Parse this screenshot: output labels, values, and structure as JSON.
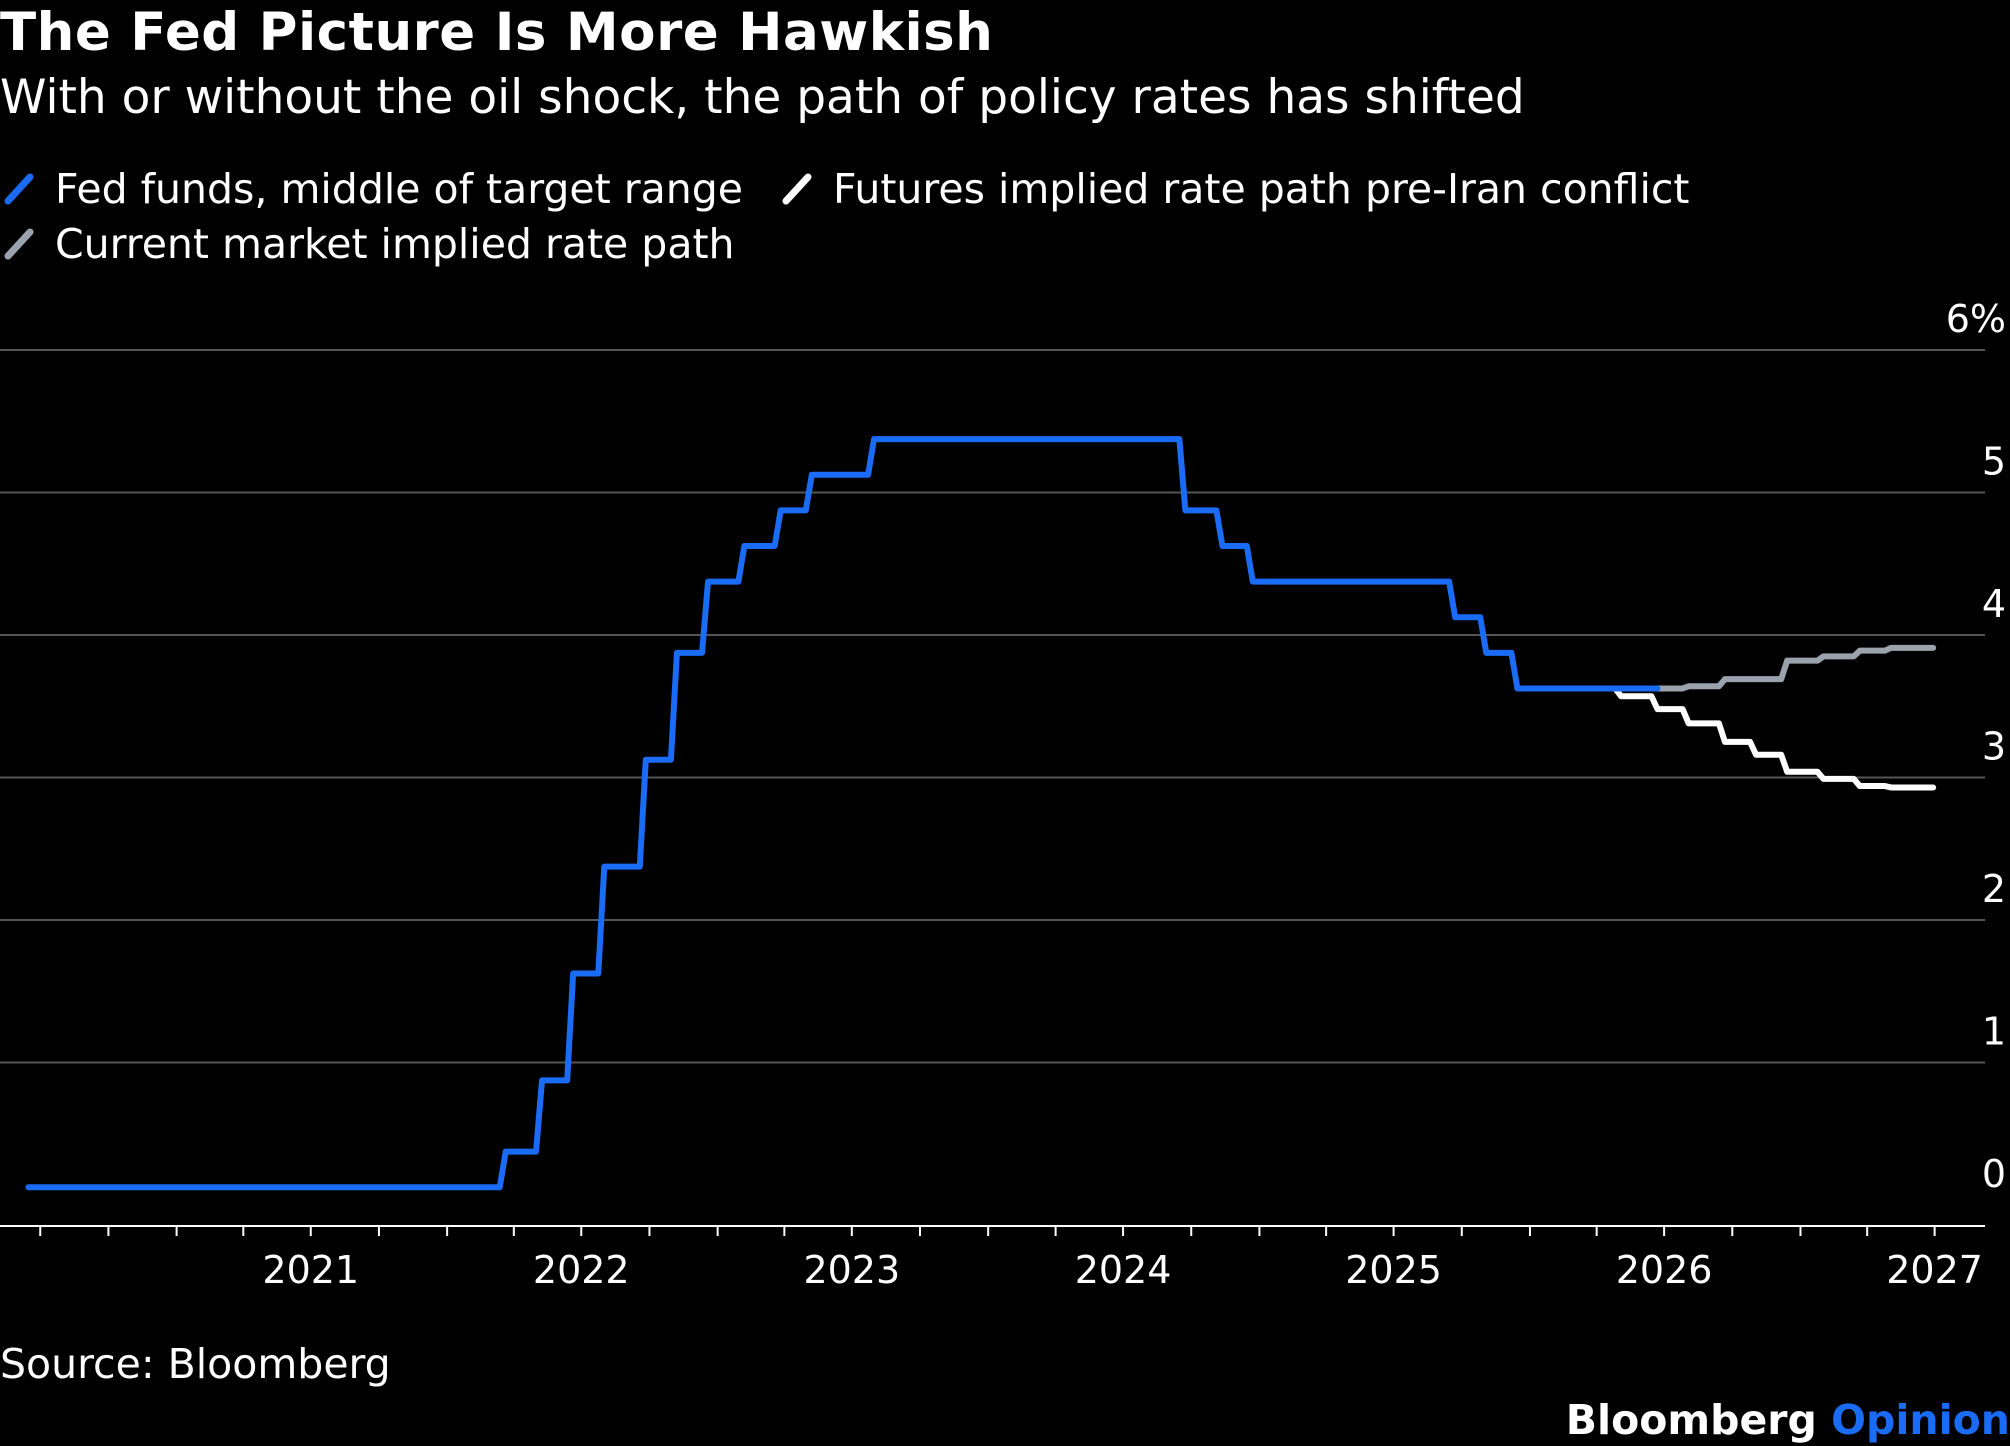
{
  "chart_data": {
    "type": "line",
    "title": "The Fed Picture Is More Hawkish",
    "subtitle": "With or without the oil shock, the path of policy rates has shifted",
    "ylim": [
      0,
      6
    ],
    "y_ticks": [
      "0",
      "1",
      "2",
      "3",
      "4",
      "5",
      "6%"
    ],
    "x_tick_labels": [
      "2021",
      "2022",
      "2023",
      "2024",
      "2025",
      "2026",
      "2027"
    ],
    "xlim": [
      "2020-06-01",
      "2027-07-15"
    ],
    "legend_placement": "top-left",
    "grid": "horizontal",
    "series": [
      {
        "name": "Fed funds, middle of target range",
        "color": "#1a6bf5",
        "step": true,
        "points": [
          [
            "2020-06-15",
            0.125
          ],
          [
            "2022-03-17",
            0.375
          ],
          [
            "2022-05-05",
            0.875
          ],
          [
            "2022-06-16",
            1.625
          ],
          [
            "2022-07-28",
            2.375
          ],
          [
            "2022-09-22",
            3.125
          ],
          [
            "2022-11-03",
            3.875
          ],
          [
            "2022-12-15",
            4.375
          ],
          [
            "2023-02-02",
            4.625
          ],
          [
            "2023-03-23",
            4.875
          ],
          [
            "2023-05-04",
            5.125
          ],
          [
            "2023-07-27",
            5.375
          ],
          [
            "2024-09-19",
            4.875
          ],
          [
            "2024-11-08",
            4.625
          ],
          [
            "2024-12-19",
            4.375
          ],
          [
            "2025-09-18",
            4.125
          ],
          [
            "2025-10-30",
            3.875
          ],
          [
            "2025-12-11",
            3.625
          ],
          [
            "2026-06-18",
            3.625
          ]
        ]
      },
      {
        "name": "Futures implied rate path pre-Iran conflict",
        "color": "#ffffff",
        "step": true,
        "points": [
          [
            "2026-03-01",
            3.625
          ],
          [
            "2026-04-30",
            3.57
          ],
          [
            "2026-06-18",
            3.48
          ],
          [
            "2026-07-30",
            3.38
          ],
          [
            "2026-09-17",
            3.25
          ],
          [
            "2026-10-29",
            3.16
          ],
          [
            "2026-12-10",
            3.04
          ],
          [
            "2027-01-28",
            2.99
          ],
          [
            "2027-03-18",
            2.94
          ],
          [
            "2027-04-29",
            2.93
          ],
          [
            "2027-06-25",
            2.93
          ]
        ]
      },
      {
        "name": "Current market implied rate path",
        "color": "#9aa3ad",
        "step": true,
        "points": [
          [
            "2026-06-18",
            3.625
          ],
          [
            "2026-07-30",
            3.64
          ],
          [
            "2026-09-17",
            3.69
          ],
          [
            "2026-12-10",
            3.82
          ],
          [
            "2027-01-28",
            3.85
          ],
          [
            "2027-03-18",
            3.89
          ],
          [
            "2027-04-29",
            3.91
          ],
          [
            "2027-06-25",
            3.91
          ]
        ]
      }
    ],
    "source": "Source: Bloomberg"
  },
  "legend": [
    "Fed funds, middle of target range",
    "Futures implied rate path pre-Iran conflict",
    "Current market implied rate path"
  ],
  "brand": {
    "name": "Bloomberg",
    "suffix": "Opinion"
  },
  "colors": {
    "background": "#000000",
    "grid": "#555555",
    "accent": "#1a6bf5"
  }
}
